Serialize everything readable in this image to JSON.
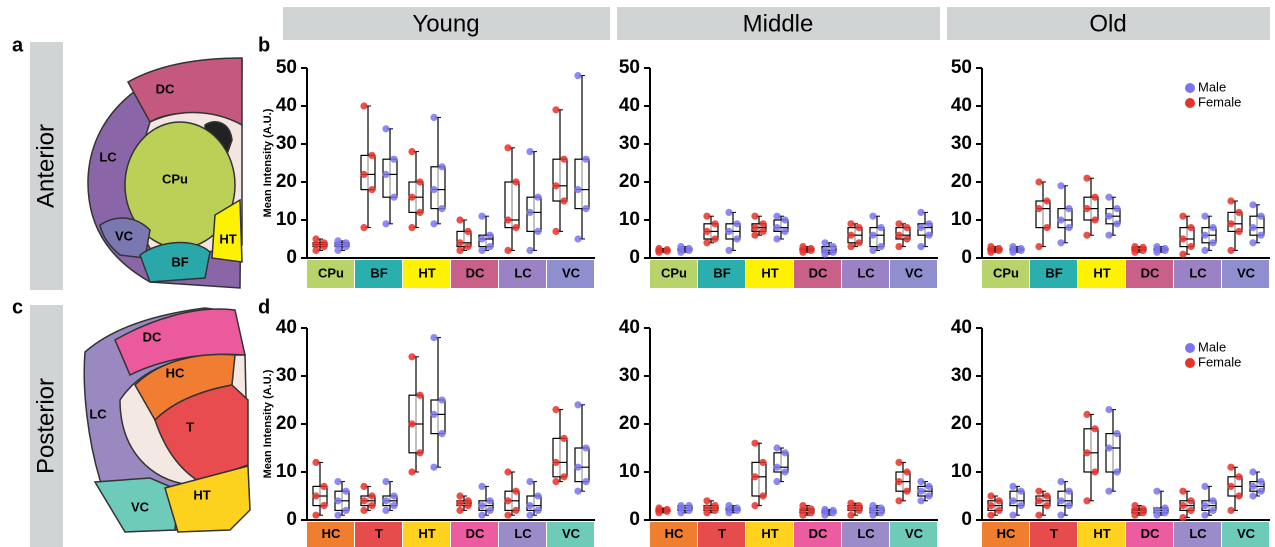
{
  "panel_letters": [
    "a",
    "b",
    "c",
    "d"
  ],
  "headers": [
    "Young",
    "Middle",
    "Old"
  ],
  "rows": [
    "Anterior",
    "Posterior"
  ],
  "anterior_regions": [
    "DC",
    "LC",
    "CPu",
    "VC",
    "BF",
    "HT"
  ],
  "posterior_regions": [
    "DC",
    "HC",
    "LC",
    "T",
    "VC",
    "HT"
  ],
  "chart_data": [
    {
      "type": "box",
      "ylabel": "Mean Intensity (A.U.)",
      "categories": [
        "CPu",
        "BF",
        "HT",
        "DC",
        "LC",
        "VC"
      ],
      "category_colors": [
        "#b7d36a",
        "#2aaeae",
        "#fff200",
        "#c9608a",
        "#9b82c4",
        "#8f8fd0"
      ],
      "ylim": [
        0,
        50
      ],
      "yticks": [
        0,
        10,
        20,
        30,
        40,
        50
      ],
      "series": [
        {
          "name": "Female",
          "color": "#e8332a",
          "boxes": [
            [
              2,
              3,
              3.5,
              4,
              5
            ],
            [
              8,
              18,
              22,
              27,
              40
            ],
            [
              8,
              12,
              16,
              20,
              28
            ],
            [
              2,
              3,
              4,
              7,
              10
            ],
            [
              2,
              8,
              10,
              20,
              29
            ],
            [
              7,
              15,
              19,
              26,
              39
            ]
          ]
        },
        {
          "name": "Male",
          "color": "#7b76f0",
          "boxes": [
            [
              2,
              3,
              3.5,
              4,
              4.5
            ],
            [
              9,
              16,
              22,
              26,
              34
            ],
            [
              9,
              13,
              18,
              24,
              37
            ],
            [
              2,
              3,
              5,
              6,
              11
            ],
            [
              2,
              7,
              12,
              16,
              28
            ],
            [
              5,
              13,
              18,
              26,
              48
            ]
          ]
        }
      ]
    },
    {
      "type": "box",
      "categories": [
        "CPu",
        "BF",
        "HT",
        "DC",
        "LC",
        "VC"
      ],
      "category_colors": [
        "#b7d36a",
        "#2aaeae",
        "#fff200",
        "#c9608a",
        "#9b82c4",
        "#8f8fd0"
      ],
      "ylim": [
        0,
        50
      ],
      "yticks": [
        0,
        10,
        20,
        30,
        40,
        50
      ],
      "series": [
        {
          "name": "Female",
          "color": "#e8332a",
          "boxes": [
            [
              1.5,
              1.8,
              2,
              2.2,
              2.5
            ],
            [
              4,
              5,
              7,
              9,
              11
            ],
            [
              6,
              7,
              8,
              9,
              11
            ],
            [
              1.5,
              2,
              2.2,
              2.5,
              3
            ],
            [
              3,
              4,
              6,
              8,
              9
            ],
            [
              3,
              5,
              6,
              8,
              9
            ]
          ]
        },
        {
          "name": "Male",
          "color": "#7b76f0",
          "boxes": [
            [
              1.5,
              2,
              2.2,
              2.5,
              3
            ],
            [
              2,
              5,
              7,
              9,
              12
            ],
            [
              5,
              7,
              8,
              10,
              11
            ],
            [
              1,
              1.5,
              2,
              3,
              4
            ],
            [
              2,
              3,
              6,
              8,
              11
            ],
            [
              3,
              6,
              8,
              9,
              12
            ]
          ]
        }
      ]
    },
    {
      "type": "box",
      "legend": true,
      "categories": [
        "CPu",
        "BF",
        "HT",
        "DC",
        "LC",
        "VC"
      ],
      "category_colors": [
        "#b7d36a",
        "#2aaeae",
        "#fff200",
        "#c9608a",
        "#9b82c4",
        "#8f8fd0"
      ],
      "ylim": [
        0,
        50
      ],
      "yticks": [
        0,
        10,
        20,
        30,
        40,
        50
      ],
      "series": [
        {
          "name": "Female",
          "color": "#e8332a",
          "boxes": [
            [
              1.5,
              2,
              2.2,
              2.5,
              3
            ],
            [
              3,
              8,
              13,
              15,
              20
            ],
            [
              6,
              10,
              13,
              16,
              21
            ],
            [
              1.5,
              2,
              2.3,
              2.8,
              3
            ],
            [
              1,
              3,
              5,
              8,
              11
            ],
            [
              2,
              7,
              9,
              12,
              15
            ]
          ]
        },
        {
          "name": "Male",
          "color": "#7b76f0",
          "boxes": [
            [
              1.5,
              2,
              2.2,
              2.5,
              3
            ],
            [
              4,
              8,
              10,
              13,
              19
            ],
            [
              6,
              9,
              11,
              13,
              16
            ],
            [
              1.5,
              2,
              2.2,
              2.5,
              3
            ],
            [
              2,
              4,
              6,
              8,
              11
            ],
            [
              4,
              6,
              8,
              11,
              14
            ]
          ]
        }
      ]
    },
    {
      "type": "box",
      "ylabel": "Mean Intensity (A.U.)",
      "categories": [
        "HC",
        "T",
        "HT",
        "DC",
        "LC",
        "VC"
      ],
      "category_colors": [
        "#f07e2f",
        "#e74c4c",
        "#ffd21f",
        "#ec5ca0",
        "#9b8cc9",
        "#6ecbb8"
      ],
      "ylim": [
        0,
        40
      ],
      "yticks": [
        0,
        10,
        20,
        30,
        40
      ],
      "series": [
        {
          "name": "Female",
          "color": "#e8332a",
          "boxes": [
            [
              1,
              3,
              5,
              7,
              12
            ],
            [
              2,
              3,
              4,
              5,
              7
            ],
            [
              10,
              14,
              20,
              26,
              34
            ],
            [
              2,
              3,
              3.5,
              4,
              5
            ],
            [
              1,
              2,
              4,
              6,
              10
            ],
            [
              8,
              9,
              12,
              17,
              23
            ]
          ]
        },
        {
          "name": "Male",
          "color": "#7b76f0",
          "boxes": [
            [
              1,
              2,
              4,
              6,
              8
            ],
            [
              2,
              3,
              4,
              5,
              8
            ],
            [
              11,
              18,
              22,
              25,
              38
            ],
            [
              1,
              2,
              3,
              4,
              7
            ],
            [
              1,
              2,
              3,
              5,
              8
            ],
            [
              6,
              8,
              11,
              15,
              24
            ]
          ]
        }
      ]
    },
    {
      "type": "box",
      "categories": [
        "HC",
        "T",
        "HT",
        "DC",
        "LC",
        "VC"
      ],
      "category_colors": [
        "#f07e2f",
        "#e74c4c",
        "#ffd21f",
        "#ec5ca0",
        "#9b8cc9",
        "#6ecbb8"
      ],
      "ylim": [
        0,
        40
      ],
      "yticks": [
        0,
        10,
        20,
        30,
        40
      ],
      "series": [
        {
          "name": "Female",
          "color": "#e8332a",
          "boxes": [
            [
              1.5,
              1.8,
              2,
              2.2,
              2.5
            ],
            [
              1.5,
              2,
              2.5,
              3,
              4
            ],
            [
              3,
              5,
              9,
              12,
              16
            ],
            [
              1,
              1.5,
              2,
              2.3,
              3
            ],
            [
              1,
              2,
              2.5,
              3,
              3.5
            ],
            [
              4,
              6,
              8,
              10,
              12
            ]
          ]
        },
        {
          "name": "Male",
          "color": "#7b76f0",
          "boxes": [
            [
              1.5,
              2,
              2.5,
              3,
              3
            ],
            [
              1.5,
              2,
              2.2,
              2.5,
              3
            ],
            [
              8,
              10,
              11,
              14,
              15
            ],
            [
              1,
              1.5,
              1.8,
              2,
              2.2
            ],
            [
              1,
              1.5,
              2,
              2.5,
              3
            ],
            [
              4,
              5,
              6,
              7,
              8
            ]
          ]
        }
      ]
    },
    {
      "type": "box",
      "legend": true,
      "categories": [
        "HC",
        "T",
        "HT",
        "DC",
        "LC",
        "VC"
      ],
      "category_colors": [
        "#f07e2f",
        "#e74c4c",
        "#ffd21f",
        "#ec5ca0",
        "#9b8cc9",
        "#6ecbb8"
      ],
      "ylim": [
        0,
        40
      ],
      "yticks": [
        0,
        10,
        20,
        30,
        40
      ],
      "series": [
        {
          "name": "Female",
          "color": "#e8332a",
          "boxes": [
            [
              1,
              2,
              3,
              4,
              5
            ],
            [
              1,
              3,
              4,
              5,
              6
            ],
            [
              4,
              10,
              14,
              19,
              22
            ],
            [
              1,
              1.5,
              2,
              2.3,
              3
            ],
            [
              0.5,
              2,
              3,
              4,
              6
            ],
            [
              2,
              5,
              7,
              9,
              11
            ]
          ]
        },
        {
          "name": "Male",
          "color": "#7b76f0",
          "boxes": [
            [
              1,
              3,
              4,
              6,
              7
            ],
            [
              1,
              3,
              4,
              6,
              8
            ],
            [
              6,
              10,
              15,
              18,
              23
            ],
            [
              1,
              1.5,
              2,
              2.5,
              6
            ],
            [
              1,
              2,
              3,
              4,
              7
            ],
            [
              5,
              6,
              7,
              8,
              10
            ]
          ]
        }
      ]
    }
  ]
}
